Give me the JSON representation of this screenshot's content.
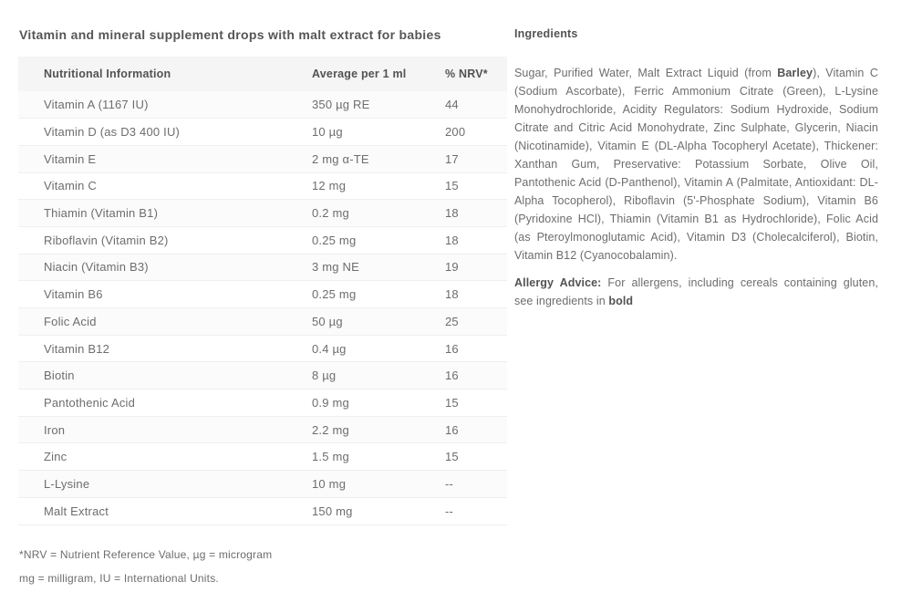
{
  "page": {
    "title": "Vitamin and mineral supplement drops with malt extract for babies"
  },
  "colors": {
    "header_row_bg": "#f5f5f5",
    "heading_text": "#535355",
    "body_text": "#6d6d6f"
  },
  "table": {
    "headers": [
      "Nutritional Information",
      "Average per 1 ml",
      "% NRV*"
    ],
    "rows": [
      {
        "name": "Vitamin A (1167 IU)",
        "amount": "350 µg RE",
        "nrv": "44"
      },
      {
        "name": "Vitamin D (as D3 400 IU)",
        "amount": "10 µg",
        "nrv": "200"
      },
      {
        "name": "Vitamin E",
        "amount": "2 mg α-TE",
        "nrv": "17"
      },
      {
        "name": "Vitamin C",
        "amount": "12 mg",
        "nrv": "15"
      },
      {
        "name": "Thiamin (Vitamin B1)",
        "amount": "0.2 mg",
        "nrv": "18"
      },
      {
        "name": "Riboflavin (Vitamin B2)",
        "amount": "0.25 mg",
        "nrv": "18"
      },
      {
        "name": "Niacin (Vitamin B3)",
        "amount": "3 mg NE",
        "nrv": "19"
      },
      {
        "name": "Vitamin B6",
        "amount": "0.25 mg",
        "nrv": "18"
      },
      {
        "name": "Folic Acid",
        "amount": "50 µg",
        "nrv": "25"
      },
      {
        "name": "Vitamin B12",
        "amount": "0.4 µg",
        "nrv": "16"
      },
      {
        "name": "Biotin",
        "amount": "8 µg",
        "nrv": "16"
      },
      {
        "name": "Pantothenic Acid",
        "amount": "0.9 mg",
        "nrv": "15"
      },
      {
        "name": "Iron",
        "amount": "2.2 mg",
        "nrv": "16"
      },
      {
        "name": "Zinc",
        "amount": "1.5 mg",
        "nrv": "15"
      },
      {
        "name": "L-Lysine",
        "amount": "10 mg",
        "nrv": "--"
      },
      {
        "name": "Malt Extract",
        "amount": "150 mg",
        "nrv": "--"
      }
    ],
    "footnotes": [
      "*NRV = Nutrient Reference Value, µg = microgram",
      "mg = milligram, IU = International Units."
    ]
  },
  "ingredients": {
    "heading": "Ingredients",
    "paragraph": [
      {
        "text": "Sugar, Purified Water, Malt Extract Liquid (from ",
        "bold": false
      },
      {
        "text": "Barley",
        "bold": true
      },
      {
        "text": "), Vitamin C (Sodium Ascorbate), Ferric Ammonium Citrate (Green), L-Lysine Monohydrochloride, Acidity Regulators: Sodium Hydroxide, Sodium Citrate and Citric Acid Monohydrate, Zinc Sulphate, Glycerin, Niacin (Nicotinamide), Vitamin E (DL-Alpha Tocopheryl Acetate), Thickener: Xanthan Gum, Preservative: Potassium Sorbate, Olive Oil, Pantothenic Acid (D-Panthenol), Vitamin A (Palmitate, Antioxidant: DL-Alpha Tocopherol), Riboflavin (5'-Phosphate Sodium), Vitamin B6 (Pyridoxine HCl), Thiamin (Vitamin B1 as Hydrochloride), Folic Acid (as Pteroylmonoglutamic Acid), Vitamin D3 (Cholecalciferol), Biotin, Vitamin B12 (Cyanocobalamin).",
        "bold": false
      }
    ],
    "allergy": [
      {
        "text": "Allergy Advice: ",
        "bold": true
      },
      {
        "text": "For allergens, including cereals containing gluten, see ingredients in ",
        "bold": false
      },
      {
        "text": "bold",
        "bold": true
      }
    ]
  }
}
